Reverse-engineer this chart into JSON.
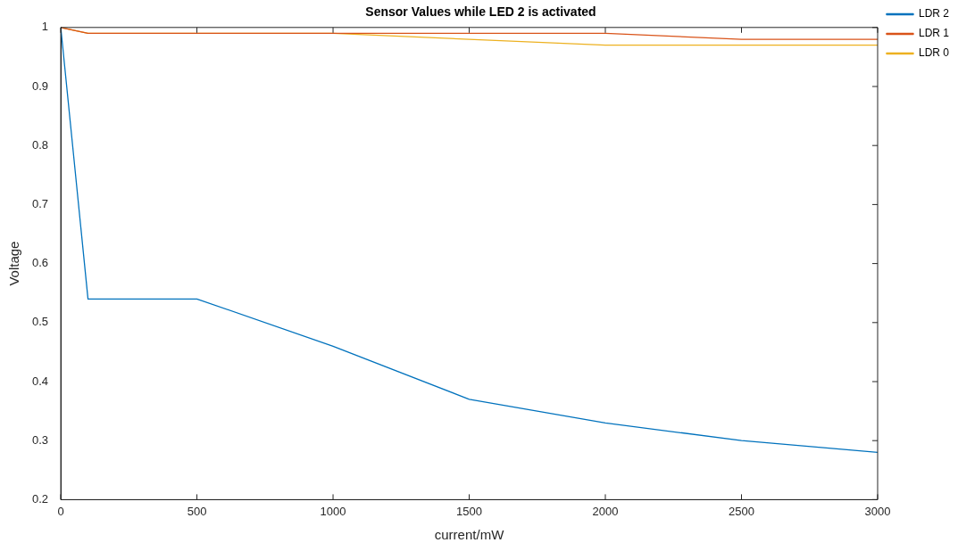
{
  "chart_data": {
    "type": "line",
    "title": "Sensor Values while LED 2 is activated",
    "xlabel": "current/mW",
    "ylabel": "Voltage",
    "x": [
      0,
      100,
      500,
      1000,
      1500,
      2000,
      2500,
      3000
    ],
    "series": [
      {
        "name": "LDR 2",
        "color": "#0072bd",
        "values": [
          1,
          0.54,
          0.54,
          0.46,
          0.37,
          0.33,
          0.3,
          0.28
        ]
      },
      {
        "name": "LDR 1",
        "color": "#d95319",
        "values": [
          1,
          0.99,
          0.99,
          0.99,
          0.99,
          0.99,
          0.98,
          0.98
        ]
      },
      {
        "name": "LDR 0",
        "color": "#edb120",
        "values": [
          1,
          0.99,
          0.99,
          0.99,
          0.98,
          0.97,
          0.97,
          0.97
        ]
      }
    ],
    "xlim": [
      0,
      3000
    ],
    "xticks": [
      0,
      500,
      1000,
      1500,
      2000,
      2500,
      3000
    ],
    "ylim": [
      0.2,
      1
    ],
    "yticks": [
      0.2,
      0.3,
      0.4,
      0.5,
      0.6,
      0.7,
      0.8,
      0.9,
      1
    ],
    "legend": "top right",
    "grid": false,
    "marker": "none",
    "line_style": "solid"
  }
}
